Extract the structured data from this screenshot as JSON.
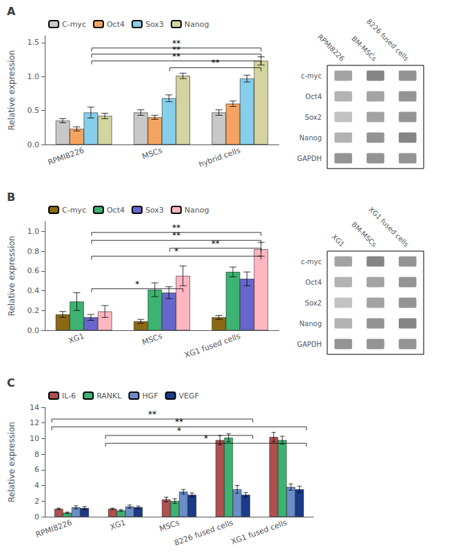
{
  "chart_data": [
    {
      "type": "bar",
      "title": "A",
      "categories": [
        "RPMI8226",
        "MSCs",
        "hybrid cells"
      ],
      "series": [
        {
          "name": "C-myc",
          "color": "#c8c8c8",
          "values": [
            0.35,
            0.47,
            0.47
          ],
          "errors": [
            0.03,
            0.04,
            0.04
          ]
        },
        {
          "name": "Oct4",
          "color": "#f4a460",
          "values": [
            0.23,
            0.4,
            0.6
          ],
          "errors": [
            0.03,
            0.03,
            0.04
          ]
        },
        {
          "name": "Sox3",
          "color": "#87ceeb",
          "values": [
            0.47,
            0.68,
            0.97
          ],
          "errors": [
            0.08,
            0.05,
            0.05
          ]
        },
        {
          "name": "Nanog",
          "color": "#d4d4a0",
          "values": [
            0.42,
            1.01,
            1.23
          ],
          "errors": [
            0.04,
            0.04,
            0.06
          ]
        }
      ],
      "ylabel": "Relative expression",
      "ylim": [
        0,
        1.6
      ],
      "yticks": [
        {
          "value": 0,
          "label": "0.0"
        },
        0.5,
        {
          "value": 1,
          "label": "1.0"
        },
        1.5
      ],
      "grid": false,
      "legend": "upper left",
      "annotations": [
        {
          "label": "**",
          "x1": "RPMI8226",
          "x2": "hybrid cells",
          "y": 1.42
        },
        {
          "label": "**",
          "x1": "RPMI8226",
          "x2": "hybrid cells",
          "y": 1.33
        },
        {
          "label": "**",
          "x1": "RPMI8226",
          "x2": "hybrid cells",
          "y": 1.23
        },
        {
          "label": "**",
          "x1": "MSCs",
          "x2": "hybrid cells",
          "y": 1.13
        }
      ]
    },
    {
      "type": "bar",
      "title": "B",
      "categories": [
        "XG1",
        "MSCs",
        "XG1 fused cells"
      ],
      "series": [
        {
          "name": "C-myc",
          "color": "#8b6914",
          "values": [
            0.16,
            0.09,
            0.13
          ],
          "errors": [
            0.03,
            0.02,
            0.02
          ]
        },
        {
          "name": "Oct4",
          "color": "#3cb371",
          "values": [
            0.29,
            0.41,
            0.59
          ],
          "errors": [
            0.09,
            0.07,
            0.05
          ]
        },
        {
          "name": "Sox3",
          "color": "#6666cc",
          "values": [
            0.13,
            0.38,
            0.52
          ],
          "errors": [
            0.03,
            0.06,
            0.07
          ]
        },
        {
          "name": "Nanog",
          "color": "#ffb6c1",
          "values": [
            0.19,
            0.55,
            0.82
          ],
          "errors": [
            0.06,
            0.1,
            0.07
          ]
        }
      ],
      "ylabel": "Relative expression",
      "ylim": [
        0,
        1.1
      ],
      "yticks": [
        {
          "value": 0,
          "label": "0.0"
        },
        0.2,
        0.4,
        0.6,
        0.8,
        {
          "value": 1,
          "label": "1.0"
        }
      ],
      "grid": false,
      "legend": "upper left",
      "annotations": [
        {
          "label": "**",
          "x1": "XG1",
          "x2": "XG1 fused cells",
          "y": 0.99
        },
        {
          "label": "**",
          "x1": "XG1",
          "x2": "XG1 fused cells",
          "y": 0.91
        },
        {
          "label": "**",
          "x1": "MSCs",
          "x2": "XG1 fused cells",
          "y": 0.83
        },
        {
          "label": "*",
          "x1": "XG1",
          "x2": "XG1 fused cells",
          "y": 0.75
        },
        {
          "label": "*",
          "x1": "XG1",
          "x2": "MSCs",
          "y": 0.42
        }
      ]
    },
    {
      "type": "bar",
      "title": "C",
      "categories": [
        "RPMI8226",
        "XG1",
        "MSCs",
        "8226 fused cells",
        "XG1 fused cells"
      ],
      "series": [
        {
          "name": "IL-6",
          "color": "#b05050",
          "values": [
            1.0,
            1.0,
            2.2,
            9.8,
            10.2
          ],
          "errors": [
            0.1,
            0.1,
            0.3,
            0.6,
            0.6
          ]
        },
        {
          "name": "RANKL",
          "color": "#3cb371",
          "values": [
            0.5,
            0.8,
            2.0,
            10.1,
            9.8
          ],
          "errors": [
            0.1,
            0.1,
            0.3,
            0.5,
            0.5
          ]
        },
        {
          "name": "HGF",
          "color": "#6b8ec8",
          "values": [
            1.2,
            1.3,
            3.2,
            3.5,
            3.8
          ],
          "errors": [
            0.2,
            0.2,
            0.3,
            0.5,
            0.4
          ]
        },
        {
          "name": "VEGF",
          "color": "#1a3a8a",
          "values": [
            1.1,
            1.2,
            2.8,
            2.8,
            3.5
          ],
          "errors": [
            0.2,
            0.15,
            0.25,
            0.3,
            0.4
          ]
        }
      ],
      "ylabel": "Relative expression",
      "ylim": [
        0,
        14
      ],
      "yticks": [
        0,
        2,
        4,
        6,
        8,
        10,
        12,
        14
      ],
      "grid": false,
      "legend": "upper left",
      "annotations": [
        {
          "label": "**",
          "x1": "RPMI8226",
          "x2": "8226 fused cells",
          "y": 12.5
        },
        {
          "label": "**",
          "x1": "RPMI8226",
          "x2": "XG1 fused cells",
          "y": 11.5
        },
        {
          "label": "*",
          "x1": "XG1",
          "x2": "8226 fused cells",
          "y": 10.4
        },
        {
          "label": "*",
          "x1": "XG1",
          "x2": "XG1 fused cells",
          "y": 9.4
        }
      ]
    },
    {
      "type": "heatmap",
      "categories": [
        "RPMI8226",
        "BM-MSCs",
        "8226 fused cells"
      ],
      "y_categories": [
        "c-myc",
        "Oct4",
        "Sox2",
        "Nanog",
        "GAPDH"
      ],
      "cells": [
        [
          0.6,
          0.8,
          0.7
        ],
        [
          0.5,
          0.6,
          0.7
        ],
        [
          0.4,
          0.6,
          0.7
        ],
        [
          0.5,
          0.7,
          0.8
        ],
        [
          0.7,
          0.7,
          0.7
        ]
      ],
      "grid": false
    },
    {
      "type": "heatmap",
      "categories": [
        "XG1",
        "BM-MSCs",
        "XG1 fused cells"
      ],
      "y_categories": [
        "c-myc",
        "Oct4",
        "Sox2",
        "Nanog",
        "GAPDH"
      ],
      "cells": [
        [
          0.6,
          0.8,
          0.7
        ],
        [
          0.5,
          0.6,
          0.7
        ],
        [
          0.4,
          0.6,
          0.7
        ],
        [
          0.5,
          0.7,
          0.8
        ],
        [
          0.7,
          0.7,
          0.7
        ]
      ],
      "grid": false
    }
  ]
}
